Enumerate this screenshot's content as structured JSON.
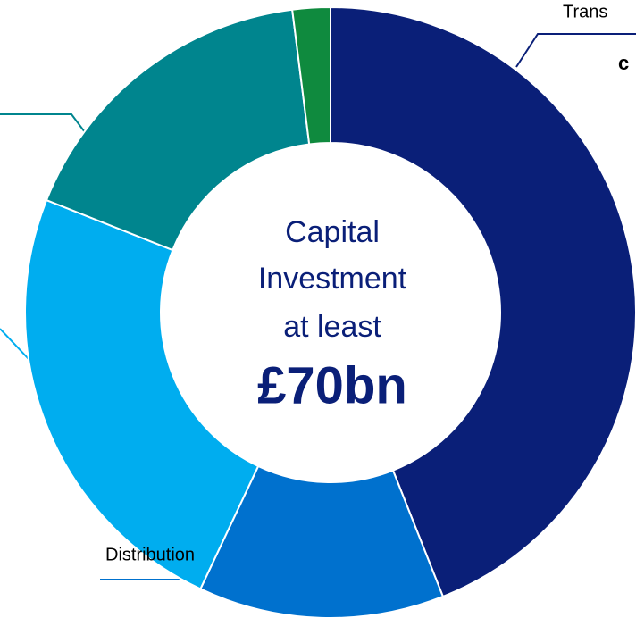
{
  "chart_data": {
    "type": "donut",
    "categories": [
      "Trans",
      "Distribution",
      null,
      null,
      null
    ],
    "values": [
      44,
      13,
      24,
      17,
      2
    ],
    "colors": [
      "#0a1f78",
      "#0071ce",
      "#00adef",
      "#00858e",
      "#0f8a3e"
    ],
    "annotations": [
      "c"
    ],
    "center_text": [
      "Capital",
      "Investment",
      "at least",
      "£70bn"
    ]
  }
}
